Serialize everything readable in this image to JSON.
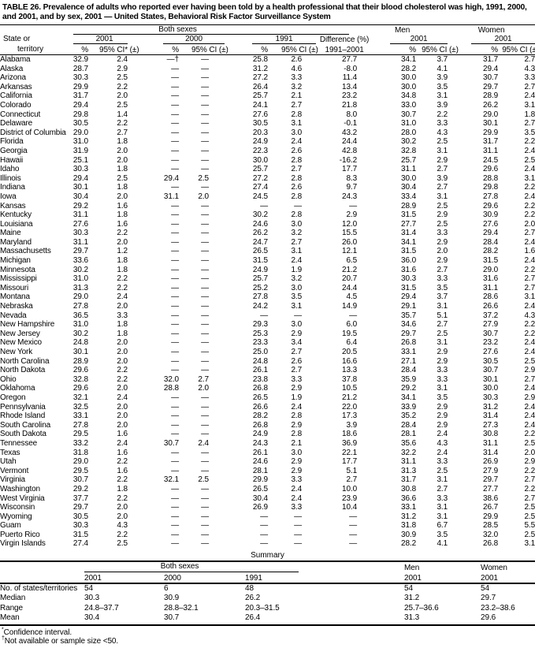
{
  "title": "TABLE 26. Prevalence of adults who reported ever having been told by a health professional that their blood cholesterol was high, 1991, 2000, and 2001, and by sex, 2001 — United States, Behavioral Risk Factor Surveillance System",
  "colors": {
    "text": "#000000",
    "background": "#ffffff"
  },
  "header": {
    "state_col_line1": "State or",
    "state_col_line2": "territory",
    "both_sexes": "Both sexes",
    "men": "Men",
    "women": "Women",
    "years": {
      "y2001": "2001",
      "y2000": "2000",
      "y1991": "1991"
    },
    "pct": "%",
    "ci_star": "95% CI* (±)",
    "ci": "95% CI (±)",
    "diff_line1": "Difference (%)",
    "diff_line2": "1991–2001"
  },
  "rows": [
    {
      "state": "Alabama",
      "cells": [
        "32.9",
        "2.4",
        "—†",
        "—",
        "25.8",
        "2.6",
        "27.7",
        "34.1",
        "3.7",
        "31.7",
        "2.7"
      ]
    },
    {
      "state": "Alaska",
      "cells": [
        "28.7",
        "2.9",
        "—",
        "—",
        "31.2",
        "4.6",
        "-8.0",
        "28.2",
        "4.1",
        "29.4",
        "4.3"
      ]
    },
    {
      "state": "Arizona",
      "cells": [
        "30.3",
        "2.5",
        "—",
        "—",
        "27.2",
        "3.3",
        "11.4",
        "30.0",
        "3.9",
        "30.7",
        "3.3"
      ]
    },
    {
      "state": "Arkansas",
      "cells": [
        "29.9",
        "2.2",
        "—",
        "—",
        "26.4",
        "3.2",
        "13.4",
        "30.0",
        "3.5",
        "29.7",
        "2.7"
      ]
    },
    {
      "state": "California",
      "cells": [
        "31.7",
        "2.0",
        "—",
        "—",
        "25.7",
        "2.1",
        "23.2",
        "34.8",
        "3.1",
        "28.9",
        "2.4"
      ]
    },
    {
      "state": "Colorado",
      "cells": [
        "29.4",
        "2.5",
        "—",
        "—",
        "24.1",
        "2.7",
        "21.8",
        "33.0",
        "3.9",
        "26.2",
        "3.1"
      ]
    },
    {
      "state": "Connecticut",
      "cells": [
        "29.8",
        "1.4",
        "—",
        "—",
        "27.6",
        "2.8",
        "8.0",
        "30.7",
        "2.2",
        "29.0",
        "1.8"
      ]
    },
    {
      "state": "Delaware",
      "cells": [
        "30.5",
        "2.2",
        "—",
        "—",
        "30.5",
        "3.1",
        "-0.1",
        "31.0",
        "3.3",
        "30.1",
        "2.7"
      ]
    },
    {
      "state": "District of Columbia",
      "cells": [
        "29.0",
        "2.7",
        "—",
        "—",
        "20.3",
        "3.0",
        "43.2",
        "28.0",
        "4.3",
        "29.9",
        "3.5"
      ]
    },
    {
      "state": "Florida",
      "cells": [
        "31.0",
        "1.8",
        "—",
        "—",
        "24.9",
        "2.4",
        "24.4",
        "30.2",
        "2.5",
        "31.7",
        "2.2"
      ]
    },
    {
      "state": "Georgia",
      "cells": [
        "31.9",
        "2.0",
        "—",
        "—",
        "22.3",
        "2.6",
        "42.8",
        "32.8",
        "3.1",
        "31.1",
        "2.4"
      ]
    },
    {
      "state": "Hawaii",
      "cells": [
        "25.1",
        "2.0",
        "—",
        "—",
        "30.0",
        "2.8",
        "-16.2",
        "25.7",
        "2.9",
        "24.5",
        "2.5"
      ]
    },
    {
      "state": "Idaho",
      "cells": [
        "30.3",
        "1.8",
        "—",
        "—",
        "25.7",
        "2.7",
        "17.7",
        "31.1",
        "2.7",
        "29.6",
        "2.4"
      ]
    },
    {
      "state": "Illinois",
      "cells": [
        "29.4",
        "2.5",
        "29.4",
        "2.5",
        "27.2",
        "2.8",
        "8.3",
        "30.0",
        "3.9",
        "28.8",
        "3.1"
      ]
    },
    {
      "state": "Indiana",
      "cells": [
        "30.1",
        "1.8",
        "—",
        "—",
        "27.4",
        "2.6",
        "9.7",
        "30.4",
        "2.7",
        "29.8",
        "2.2"
      ]
    },
    {
      "state": "Iowa",
      "cells": [
        "30.4",
        "2.0",
        "31.1",
        "2.0",
        "24.5",
        "2.8",
        "24.3",
        "33.4",
        "3.1",
        "27.8",
        "2.4"
      ]
    },
    {
      "state": "Kansas",
      "cells": [
        "29.2",
        "1.6",
        "—",
        "—",
        "—",
        "—",
        "—",
        "28.9",
        "2.5",
        "29.6",
        "2.2"
      ]
    },
    {
      "state": "Kentucky",
      "cells": [
        "31.1",
        "1.8",
        "—",
        "—",
        "30.2",
        "2.8",
        "2.9",
        "31.5",
        "2.9",
        "30.9",
        "2.2"
      ]
    },
    {
      "state": "Louisiana",
      "cells": [
        "27.6",
        "1.6",
        "—",
        "—",
        "24.6",
        "3.0",
        "12.0",
        "27.7",
        "2.5",
        "27.6",
        "2.0"
      ]
    },
    {
      "state": "Maine",
      "cells": [
        "30.3",
        "2.2",
        "—",
        "—",
        "26.2",
        "3.2",
        "15.5",
        "31.4",
        "3.3",
        "29.4",
        "2.7"
      ]
    },
    {
      "state": "Maryland",
      "cells": [
        "31.1",
        "2.0",
        "—",
        "—",
        "24.7",
        "2.7",
        "26.0",
        "34.1",
        "2.9",
        "28.4",
        "2.4"
      ]
    },
    {
      "state": "Massachusetts",
      "cells": [
        "29.7",
        "1.2",
        "—",
        "—",
        "26.5",
        "3.1",
        "12.1",
        "31.5",
        "2.0",
        "28.2",
        "1.6"
      ]
    },
    {
      "state": "Michigan",
      "cells": [
        "33.6",
        "1.8",
        "—",
        "—",
        "31.5",
        "2.4",
        "6.5",
        "36.0",
        "2.9",
        "31.5",
        "2.4"
      ]
    },
    {
      "state": "Minnesota",
      "cells": [
        "30.2",
        "1.8",
        "—",
        "—",
        "24.9",
        "1.9",
        "21.2",
        "31.6",
        "2.7",
        "29.0",
        "2.2"
      ]
    },
    {
      "state": "Mississippi",
      "cells": [
        "31.0",
        "2.2",
        "—",
        "—",
        "25.7",
        "3.2",
        "20.7",
        "30.3",
        "3.3",
        "31.6",
        "2.7"
      ]
    },
    {
      "state": "Missouri",
      "cells": [
        "31.3",
        "2.2",
        "—",
        "—",
        "25.2",
        "3.0",
        "24.4",
        "31.5",
        "3.5",
        "31.1",
        "2.7"
      ]
    },
    {
      "state": "Montana",
      "cells": [
        "29.0",
        "2.4",
        "—",
        "—",
        "27.8",
        "3.5",
        "4.5",
        "29.4",
        "3.7",
        "28.6",
        "3.1"
      ]
    },
    {
      "state": "Nebraska",
      "cells": [
        "27.8",
        "2.0",
        "—",
        "—",
        "24.2",
        "3.1",
        "14.9",
        "29.1",
        "3.1",
        "26.6",
        "2.4"
      ]
    },
    {
      "state": "Nevada",
      "cells": [
        "36.5",
        "3.3",
        "—",
        "—",
        "—",
        "—",
        "—",
        "35.7",
        "5.1",
        "37.2",
        "4.3"
      ]
    },
    {
      "state": "New Hampshire",
      "cells": [
        "31.0",
        "1.8",
        "—",
        "—",
        "29.3",
        "3.0",
        "6.0",
        "34.6",
        "2.7",
        "27.9",
        "2.2"
      ]
    },
    {
      "state": "New Jersey",
      "cells": [
        "30.2",
        "1.8",
        "—",
        "—",
        "25.3",
        "2.9",
        "19.5",
        "29.7",
        "2.5",
        "30.7",
        "2.2"
      ]
    },
    {
      "state": "New Mexico",
      "cells": [
        "24.8",
        "2.0",
        "—",
        "—",
        "23.3",
        "3.4",
        "6.4",
        "26.8",
        "3.1",
        "23.2",
        "2.4"
      ]
    },
    {
      "state": "New York",
      "cells": [
        "30.1",
        "2.0",
        "—",
        "—",
        "25.0",
        "2.7",
        "20.5",
        "33.1",
        "2.9",
        "27.6",
        "2.4"
      ]
    },
    {
      "state": "North Carolina",
      "cells": [
        "28.9",
        "2.0",
        "—",
        "—",
        "24.8",
        "2.6",
        "16.6",
        "27.1",
        "2.9",
        "30.5",
        "2.5"
      ]
    },
    {
      "state": "North Dakota",
      "cells": [
        "29.6",
        "2.2",
        "—",
        "—",
        "26.1",
        "2.7",
        "13.3",
        "28.4",
        "3.3",
        "30.7",
        "2.9"
      ]
    },
    {
      "state": "Ohio",
      "cells": [
        "32.8",
        "2.2",
        "32.0",
        "2.7",
        "23.8",
        "3.3",
        "37.8",
        "35.9",
        "3.3",
        "30.1",
        "2.7"
      ]
    },
    {
      "state": "Oklahoma",
      "cells": [
        "29.6",
        "2.0",
        "28.8",
        "2.0",
        "26.8",
        "2.9",
        "10.5",
        "29.2",
        "3.1",
        "30.0",
        "2.4"
      ]
    },
    {
      "state": "Oregon",
      "cells": [
        "32.1",
        "2.4",
        "—",
        "—",
        "26.5",
        "1.9",
        "21.2",
        "34.1",
        "3.5",
        "30.3",
        "2.9"
      ]
    },
    {
      "state": "Pennsylvania",
      "cells": [
        "32.5",
        "2.0",
        "—",
        "—",
        "26.6",
        "2.4",
        "22.0",
        "33.9",
        "2.9",
        "31.2",
        "2.4"
      ]
    },
    {
      "state": "Rhode Island",
      "cells": [
        "33.1",
        "2.0",
        "—",
        "—",
        "28.2",
        "2.8",
        "17.3",
        "35.2",
        "2.9",
        "31.4",
        "2.4"
      ]
    },
    {
      "state": "South Carolina",
      "cells": [
        "27.8",
        "2.0",
        "—",
        "—",
        "26.8",
        "2.9",
        "3.9",
        "28.4",
        "2.9",
        "27.3",
        "2.4"
      ]
    },
    {
      "state": "South Dakota",
      "cells": [
        "29.5",
        "1.6",
        "—",
        "—",
        "24.9",
        "2.8",
        "18.6",
        "28.1",
        "2.4",
        "30.8",
        "2.2"
      ]
    },
    {
      "state": "Tennessee",
      "cells": [
        "33.2",
        "2.4",
        "30.7",
        "2.4",
        "24.3",
        "2.1",
        "36.9",
        "35.6",
        "4.3",
        "31.1",
        "2.5"
      ]
    },
    {
      "state": "Texas",
      "cells": [
        "31.8",
        "1.6",
        "—",
        "—",
        "26.1",
        "3.0",
        "22.1",
        "32.2",
        "2.4",
        "31.4",
        "2.0"
      ]
    },
    {
      "state": "Utah",
      "cells": [
        "29.0",
        "2.2",
        "—",
        "—",
        "24.6",
        "2.9",
        "17.7",
        "31.1",
        "3.3",
        "26.9",
        "2.9"
      ]
    },
    {
      "state": "Vermont",
      "cells": [
        "29.5",
        "1.6",
        "—",
        "—",
        "28.1",
        "2.9",
        "5.1",
        "31.3",
        "2.5",
        "27.9",
        "2.2"
      ]
    },
    {
      "state": "Virginia",
      "cells": [
        "30.7",
        "2.2",
        "32.1",
        "2.5",
        "29.9",
        "3.3",
        "2.7",
        "31.7",
        "3.1",
        "29.7",
        "2.7"
      ]
    },
    {
      "state": "Washington",
      "cells": [
        "29.2",
        "1.8",
        "—",
        "—",
        "26.5",
        "2.4",
        "10.0",
        "30.8",
        "2.7",
        "27.7",
        "2.2"
      ]
    },
    {
      "state": "West Virginia",
      "cells": [
        "37.7",
        "2.2",
        "—",
        "—",
        "30.4",
        "2.4",
        "23.9",
        "36.6",
        "3.3",
        "38.6",
        "2.7"
      ]
    },
    {
      "state": "Wisconsin",
      "cells": [
        "29.7",
        "2.0",
        "—",
        "—",
        "26.9",
        "3.3",
        "10.4",
        "33.1",
        "3.1",
        "26.7",
        "2.5"
      ]
    },
    {
      "state": "Wyoming",
      "cells": [
        "30.5",
        "2.0",
        "—",
        "—",
        "—",
        "—",
        "—",
        "31.2",
        "3.1",
        "29.9",
        "2.5"
      ]
    },
    {
      "state": "Guam",
      "cells": [
        "30.3",
        "4.3",
        "—",
        "—",
        "—",
        "—",
        "—",
        "31.8",
        "6.7",
        "28.5",
        "5.5"
      ]
    },
    {
      "state": "Puerto Rico",
      "cells": [
        "31.5",
        "2.2",
        "—",
        "—",
        "—",
        "—",
        "—",
        "30.9",
        "3.5",
        "32.0",
        "2.5"
      ]
    },
    {
      "state": "Virgin Islands",
      "cells": [
        "27.4",
        "2.5",
        "—",
        "—",
        "—",
        "—",
        "—",
        "28.2",
        "4.1",
        "26.8",
        "3.1"
      ]
    }
  ],
  "summary": {
    "title": "Summary",
    "both_sexes": "Both sexes",
    "men": "Men",
    "women": "Women",
    "col_years": [
      "2001",
      "2000",
      "1991",
      "2001",
      "2001"
    ],
    "rows": [
      {
        "label": "No. of states/territories",
        "values": [
          "54",
          "6",
          "48",
          "54",
          "54"
        ]
      },
      {
        "label": "Median",
        "values": [
          "30.3",
          "30.9",
          "26.2",
          "31.2",
          "29.7"
        ]
      },
      {
        "label": "Range",
        "values": [
          "24.8–37.7",
          "28.8–32.1",
          "20.3–31.5",
          "25.7–36.6",
          "23.2–38.6"
        ]
      },
      {
        "label": "Mean",
        "values": [
          "30.4",
          "30.7",
          "26.4",
          "31.3",
          "29.6"
        ]
      }
    ]
  },
  "footnotes": [
    {
      "marker": "*",
      "text": "Confidence interval."
    },
    {
      "marker": "†",
      "text": "Not available or sample size <50."
    }
  ]
}
